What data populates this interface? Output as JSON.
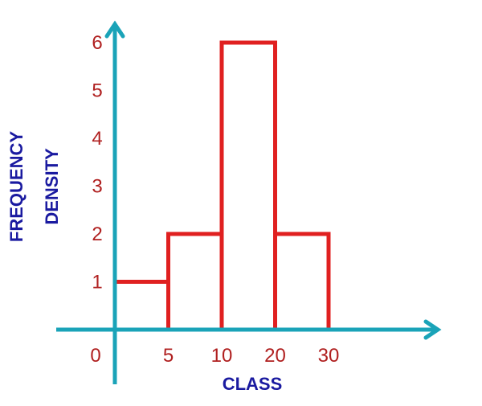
{
  "chart_data": {
    "type": "bar",
    "subtype": "histogram",
    "bins": [
      {
        "start": 0,
        "end": 5,
        "density": 1
      },
      {
        "start": 5,
        "end": 10,
        "density": 2
      },
      {
        "start": 10,
        "end": 20,
        "density": 6
      },
      {
        "start": 20,
        "end": 30,
        "density": 2
      }
    ],
    "x_tick_labels": [
      "0",
      "5",
      "10",
      "20",
      "30"
    ],
    "y_tick_labels": [
      "1",
      "2",
      "3",
      "4",
      "5",
      "6"
    ],
    "xlabel": "CLASS",
    "ylabel_lines": [
      "FREQUENCY",
      "DENSITY"
    ],
    "ylim": [
      0,
      6
    ],
    "grid": false,
    "legend": "none",
    "colors": {
      "axis": "#1aa3b8",
      "bars": "#e02020",
      "tick_text": "#b02020",
      "label_text": "#1a1aa0"
    }
  }
}
